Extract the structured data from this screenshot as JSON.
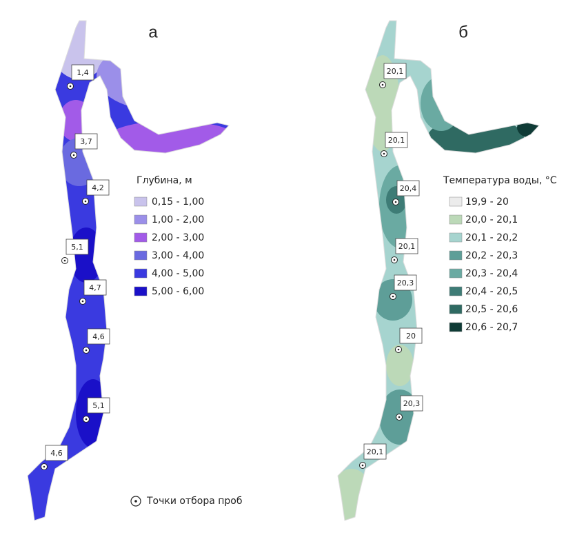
{
  "panels": [
    {
      "label": "а",
      "legend_title": "Глубина, м",
      "legend": [
        {
          "text": "0,15 -  1,00",
          "color": "#c9c3ec"
        },
        {
          "text": "1,00 -  2,00",
          "color": "#9b8fe9"
        },
        {
          "text": "2,00 -  3,00",
          "color": "#a25be8"
        },
        {
          "text": "3,00 -  4,00",
          "color": "#6a6ae0"
        },
        {
          "text": "4,00 -  5,00",
          "color": "#3a3ae0"
        },
        {
          "text": "5,00 -  6,00",
          "color": "#1a10c8"
        }
      ],
      "samples": [
        "1,4",
        "3,7",
        "4,2",
        "5,1",
        "4,7",
        "4,6",
        "5,1",
        "4,6"
      ]
    },
    {
      "label": "б",
      "legend_title": "Температура воды, °С",
      "legend": [
        {
          "text": "19,9 - 20",
          "color": "#ececec"
        },
        {
          "text": "20,0 - 20,1",
          "color": "#bcd9b8"
        },
        {
          "text": "20,1 - 20,2",
          "color": "#a6d4cf"
        },
        {
          "text": "20,2 - 20,3",
          "color": "#5e9e98"
        },
        {
          "text": "20,3 - 20,4",
          "color": "#6aaaa2"
        },
        {
          "text": "20,4 - 20,5",
          "color": "#3e7c76"
        },
        {
          "text": "20,5 - 20,6",
          "color": "#2f6a62"
        },
        {
          "text": "20,6 - 20,7",
          "color": "#0f3b36"
        }
      ],
      "samples": [
        "20,1",
        "20,1",
        "20,4",
        "20,1",
        "20,3",
        "20",
        "20,3",
        "20,1"
      ]
    }
  ],
  "sampling_points_label": "Точки отбора проб"
}
